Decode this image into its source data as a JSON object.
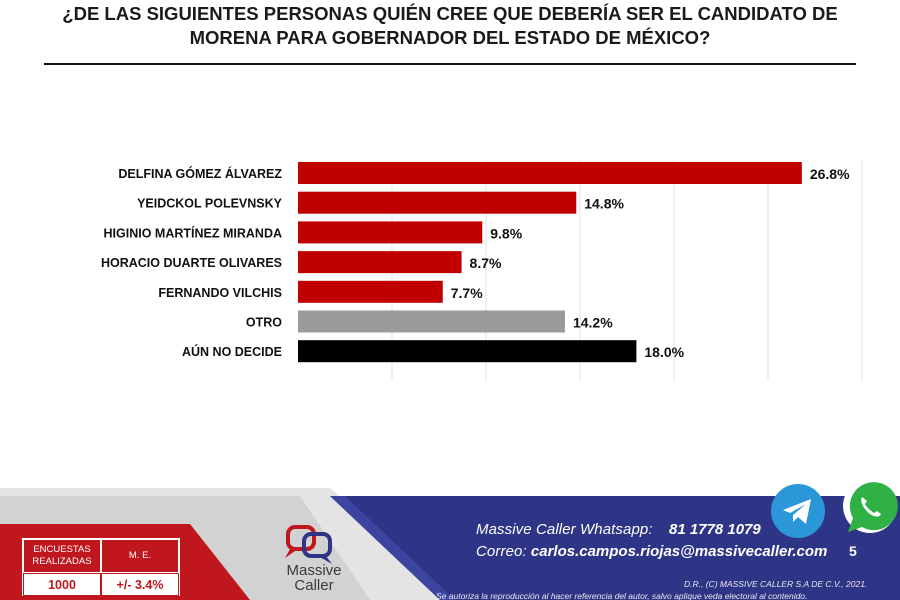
{
  "title": "¿DE LAS SIGUIENTES PERSONAS QUIÉN CREE QUE DEBERÍA SER EL CANDIDATO DE MORENA PARA GOBERNADOR DEL ESTADO DE MÉXICO?",
  "chart_data": {
    "type": "bar",
    "orientation": "horizontal",
    "categories": [
      "DELFINA GÓMEZ ÁLVAREZ",
      "YEIDCKOL POLEVNSKY",
      "HIGINIO MARTÍNEZ MIRANDA",
      "HORACIO DUARTE OLIVARES",
      "FERNANDO VILCHIS",
      "OTRO",
      "AÚN NO DECIDE"
    ],
    "values": [
      26.8,
      14.8,
      9.8,
      8.7,
      7.7,
      14.2,
      18.0
    ],
    "value_labels": [
      "26.8%",
      "14.8%",
      "9.8%",
      "8.7%",
      "7.7%",
      "14.2%",
      "18.0%"
    ],
    "colors": [
      "#c00000",
      "#c00000",
      "#c00000",
      "#c00000",
      "#c00000",
      "#9b9b9b",
      "#000000"
    ],
    "xlim": [
      0,
      30
    ],
    "grid": true,
    "title": "",
    "xlabel": "",
    "ylabel": ""
  },
  "footer": {
    "survey_header_left": "ENCUESTAS REALIZADAS",
    "survey_header_right": "M. E.",
    "survey_count": "1000",
    "margin_error": "+/- 3.4%",
    "logo_line1": "Massive",
    "logo_line2": "Caller",
    "whatsapp_label": "Massive Caller Whatsapp:",
    "whatsapp_number": "81 1778 1079",
    "email_label": "Correo:",
    "email": "carlos.campos.riojas@massivecaller.com",
    "page_number": "5",
    "legal_line1": "D.R., (C) MASSIVE CALLER S.A DE C.V., 2021.",
    "legal_line2": "Se autoriza la reproducción al hacer referencia del autor, salvo aplique veda electoral al contenido.",
    "colors": {
      "navy": "#2f3586",
      "red": "#c0161d",
      "gray": "#c9c9c9"
    }
  },
  "icons": [
    "telegram-icon",
    "whatsapp-icon",
    "massive-caller-logo-icon"
  ]
}
